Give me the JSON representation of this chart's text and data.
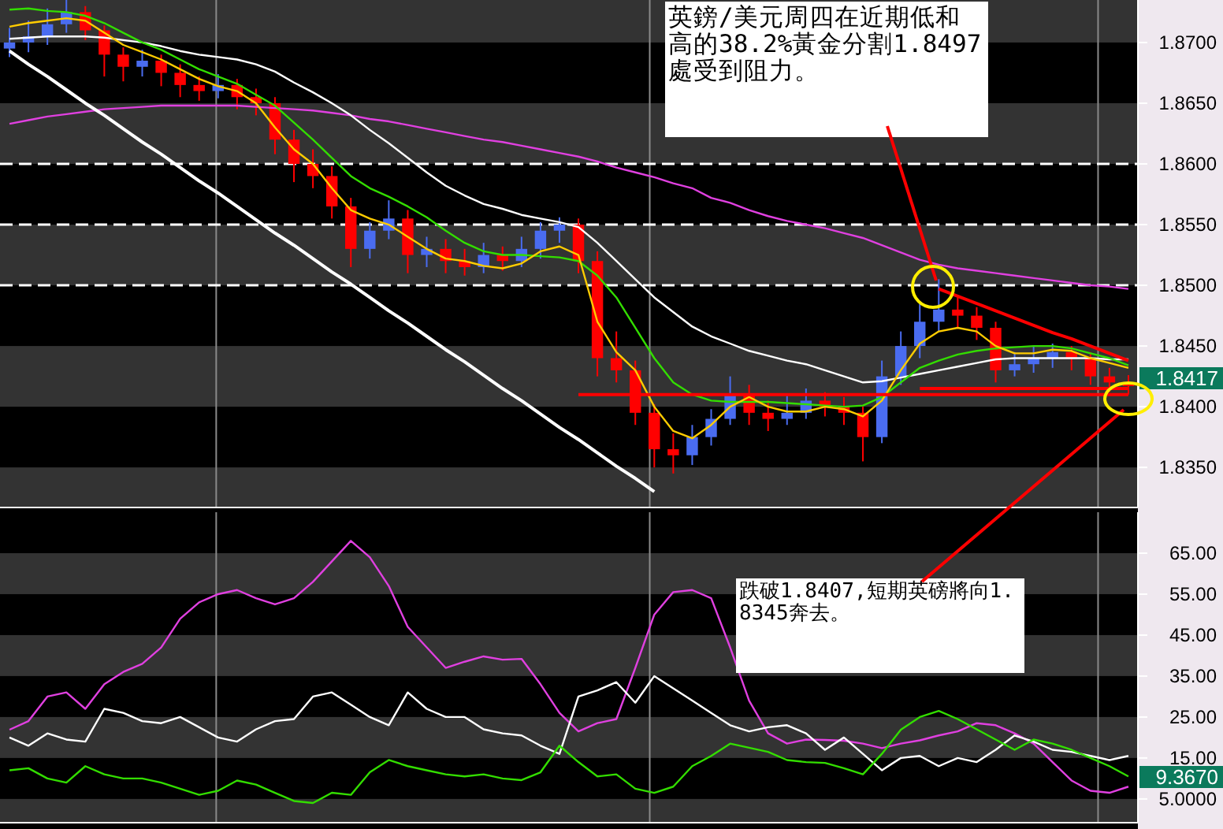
{
  "chart_data": [
    {
      "type": "candlestick",
      "categories": [
        null,
        null,
        null,
        null,
        null,
        null,
        null,
        null,
        null,
        null,
        null,
        null,
        null,
        null,
        null,
        null,
        null,
        null,
        null,
        null,
        null,
        null,
        null,
        null,
        null,
        null,
        null,
        null,
        null,
        null,
        null,
        null,
        null,
        null,
        null,
        null,
        null,
        null,
        null,
        null,
        null,
        null,
        null,
        null,
        null,
        null,
        null,
        null,
        null,
        null,
        null,
        null,
        null,
        null,
        null,
        null,
        null,
        null,
        null,
        null
      ],
      "ohlc": [
        [
          1.8695,
          1.8712,
          1.8688,
          1.87
        ],
        [
          1.87,
          1.8718,
          1.8692,
          1.8705
        ],
        [
          1.8705,
          1.8728,
          1.8698,
          1.8715
        ],
        [
          1.8715,
          1.8735,
          1.8708,
          1.8725
        ],
        [
          1.8725,
          1.873,
          1.8702,
          1.871
        ],
        [
          1.871,
          1.8714,
          1.8672,
          1.869
        ],
        [
          1.869,
          1.8696,
          1.8668,
          1.868
        ],
        [
          1.868,
          1.8694,
          1.8672,
          1.8685
        ],
        [
          1.8685,
          1.869,
          1.8664,
          1.8675
        ],
        [
          1.8675,
          1.8682,
          1.8655,
          1.8665
        ],
        [
          1.8665,
          1.8672,
          1.8652,
          1.866
        ],
        [
          1.866,
          1.8674,
          1.8654,
          1.8665
        ],
        [
          1.8665,
          1.867,
          1.8645,
          1.8655
        ],
        [
          1.8655,
          1.8662,
          1.864,
          1.865
        ],
        [
          1.865,
          1.8655,
          1.8608,
          1.862
        ],
        [
          1.862,
          1.8628,
          1.8585,
          1.86
        ],
        [
          1.86,
          1.8612,
          1.858,
          1.859
        ],
        [
          1.859,
          1.8598,
          1.8555,
          1.8565
        ],
        [
          1.8565,
          1.8572,
          1.8515,
          1.853
        ],
        [
          1.853,
          1.8552,
          1.8522,
          1.8545
        ],
        [
          1.8545,
          1.857,
          1.8538,
          1.8555
        ],
        [
          1.8555,
          1.8562,
          1.851,
          1.8525
        ],
        [
          1.8525,
          1.854,
          1.8515,
          1.853
        ],
        [
          1.853,
          1.8538,
          1.851,
          1.852
        ],
        [
          1.852,
          1.853,
          1.8508,
          1.8515
        ],
        [
          1.8515,
          1.8535,
          1.851,
          1.8525
        ],
        [
          1.8525,
          1.8532,
          1.8512,
          1.852
        ],
        [
          1.852,
          1.854,
          1.8515,
          1.853
        ],
        [
          1.853,
          1.8552,
          1.8522,
          1.8545
        ],
        [
          1.8545,
          1.8556,
          1.8535,
          1.855
        ],
        [
          1.855,
          1.8555,
          1.851,
          1.852
        ],
        [
          1.852,
          1.8528,
          1.8425,
          1.844
        ],
        [
          1.844,
          1.8462,
          1.842,
          1.843
        ],
        [
          1.843,
          1.8438,
          1.8385,
          1.8395
        ],
        [
          1.8395,
          1.8402,
          1.835,
          1.8365
        ],
        [
          1.8365,
          1.8378,
          1.8345,
          1.836
        ],
        [
          1.836,
          1.8385,
          1.8352,
          1.8375
        ],
        [
          1.8375,
          1.8398,
          1.8368,
          1.839
        ],
        [
          1.839,
          1.8425,
          1.8385,
          1.841
        ],
        [
          1.841,
          1.8418,
          1.8385,
          1.8395
        ],
        [
          1.8395,
          1.8405,
          1.838,
          1.839
        ],
        [
          1.839,
          1.841,
          1.8385,
          1.8395
        ],
        [
          1.8395,
          1.8415,
          1.839,
          1.8405
        ],
        [
          1.8405,
          1.8412,
          1.8392,
          1.84
        ],
        [
          1.84,
          1.8408,
          1.8385,
          1.8395
        ],
        [
          1.8395,
          1.84,
          1.8355,
          1.8375
        ],
        [
          1.8375,
          1.8438,
          1.837,
          1.8425
        ],
        [
          1.8425,
          1.8462,
          1.8418,
          1.845
        ],
        [
          1.845,
          1.8485,
          1.844,
          1.847
        ],
        [
          1.847,
          1.8505,
          1.8462,
          1.848
        ],
        [
          1.848,
          1.849,
          1.8465,
          1.8475
        ],
        [
          1.8475,
          1.8482,
          1.8455,
          1.8465
        ],
        [
          1.8465,
          1.847,
          1.842,
          1.843
        ],
        [
          1.843,
          1.8445,
          1.8425,
          1.8435
        ],
        [
          1.8435,
          1.845,
          1.8428,
          1.844
        ],
        [
          1.844,
          1.8452,
          1.8432,
          1.8445
        ],
        [
          1.8445,
          1.845,
          1.843,
          1.844
        ],
        [
          1.844,
          1.8445,
          1.8418,
          1.8425
        ],
        [
          1.8425,
          1.8432,
          1.8412,
          1.842
        ],
        [
          1.842,
          1.8426,
          1.841,
          1.8417
        ]
      ],
      "colors": [
        "#4a6cf0",
        "#4a6cf0",
        "#4a6cf0",
        "#4a6cf0",
        "#ff0000",
        "#ff0000",
        "#ff0000",
        "#4a6cf0",
        "#ff0000",
        "#ff0000",
        "#ff0000",
        "#4a6cf0",
        "#ff0000",
        "#ff0000",
        "#ff0000",
        "#ff0000",
        "#ff0000",
        "#ff0000",
        "#ff0000",
        "#4a6cf0",
        "#4a6cf0",
        "#ff0000",
        "#4a6cf0",
        "#ff0000",
        "#ff0000",
        "#4a6cf0",
        "#ff0000",
        "#4a6cf0",
        "#4a6cf0",
        "#4a6cf0",
        "#ff0000",
        "#ff0000",
        "#ff0000",
        "#ff0000",
        "#ff0000",
        "#ff0000",
        "#4a6cf0",
        "#4a6cf0",
        "#4a6cf0",
        "#ff0000",
        "#ff0000",
        "#4a6cf0",
        "#4a6cf0",
        "#ff0000",
        "#ff0000",
        "#ff0000",
        "#4a6cf0",
        "#4a6cf0",
        "#4a6cf0",
        "#4a6cf0",
        "#ff0000",
        "#ff0000",
        "#ff0000",
        "#4a6cf0",
        "#4a6cf0",
        "#4a6cf0",
        "#ff0000",
        "#ff0000",
        "#ff0000",
        "#ff0000"
      ],
      "series": [
        {
          "type": "line",
          "color": "#e040e0",
          "values": [
            1.8633,
            1.8636,
            1.8639,
            1.8641,
            1.8643,
            1.8645,
            1.8646,
            1.8647,
            1.8648,
            1.8648,
            1.8648,
            1.8648,
            1.8648,
            1.8647,
            1.8646,
            1.8645,
            1.8644,
            1.8642,
            1.864,
            1.8637,
            1.8635,
            1.8632,
            1.8629,
            1.8626,
            1.8623,
            1.862,
            1.8618,
            1.8615,
            1.8612,
            1.8609,
            1.8606,
            1.8602,
            1.8597,
            1.8593,
            1.8589,
            1.8584,
            1.858,
            1.8572,
            1.8568,
            1.8562,
            1.8557,
            1.8553,
            1.855,
            1.8547,
            1.8543,
            1.8539,
            1.8533,
            1.8527,
            1.8521,
            1.8517,
            1.8514,
            1.8512,
            1.851,
            1.8508,
            1.8506,
            1.8504,
            1.8502,
            1.85,
            1.8499,
            1.8497
          ]
        },
        {
          "type": "line",
          "color": "#ffffff",
          "values": [
            1.8703,
            1.8704,
            1.8705,
            1.8705,
            1.8705,
            1.8704,
            1.8702,
            1.87,
            1.8697,
            1.8693,
            1.869,
            1.8688,
            1.8686,
            1.8682,
            1.8676,
            1.8667,
            1.8659,
            1.865,
            1.864,
            1.8628,
            1.8617,
            1.8605,
            1.8593,
            1.8582,
            1.8574,
            1.8567,
            1.8563,
            1.8558,
            1.8555,
            1.8552,
            1.8548,
            1.8535,
            1.852,
            1.8505,
            1.849,
            1.8478,
            1.8466,
            1.8458,
            1.8452,
            1.8446,
            1.8442,
            1.8438,
            1.8435,
            1.843,
            1.8425,
            1.842,
            1.8421,
            1.8424,
            1.8427,
            1.843,
            1.8433,
            1.8436,
            1.8439,
            1.844,
            1.844,
            1.844,
            1.844,
            1.844,
            1.8439,
            1.8439
          ]
        },
        {
          "type": "line",
          "color": "#33dd00",
          "values": [
            1.8727,
            1.8728,
            1.8726,
            1.8725,
            1.8722,
            1.8716,
            1.8708,
            1.87,
            1.8694,
            1.8686,
            1.8678,
            1.8672,
            1.8666,
            1.8657,
            1.8648,
            1.8634,
            1.862,
            1.8605,
            1.859,
            1.858,
            1.8573,
            1.8565,
            1.8556,
            1.8545,
            1.8535,
            1.8528,
            1.8525,
            1.8525,
            1.8524,
            1.8523,
            1.852,
            1.8508,
            1.849,
            1.8465,
            1.844,
            1.842,
            1.841,
            1.8405,
            1.8404,
            1.8404,
            1.8404,
            1.8403,
            1.8402,
            1.8401,
            1.84,
            1.8401,
            1.8408,
            1.842,
            1.8432,
            1.8438,
            1.8443,
            1.8446,
            1.8448,
            1.8449,
            1.845,
            1.845,
            1.8448,
            1.8444,
            1.844,
            1.8434
          ]
        },
        {
          "type": "line",
          "color": "#ffcc00",
          "values": [
            1.8713,
            1.8716,
            1.8718,
            1.872,
            1.8718,
            1.8708,
            1.8698,
            1.8692,
            1.8686,
            1.8678,
            1.867,
            1.8664,
            1.866,
            1.865,
            1.863,
            1.8612,
            1.86,
            1.858,
            1.8562,
            1.8555,
            1.855,
            1.854,
            1.853,
            1.8522,
            1.852,
            1.8516,
            1.8514,
            1.8518,
            1.8528,
            1.8532,
            1.8525,
            1.847,
            1.8445,
            1.843,
            1.84,
            1.838,
            1.8374,
            1.8385,
            1.84,
            1.8408,
            1.84,
            1.8396,
            1.8396,
            1.84,
            1.8398,
            1.8392,
            1.8405,
            1.843,
            1.8452,
            1.8462,
            1.8465,
            1.8462,
            1.845,
            1.8444,
            1.8444,
            1.8447,
            1.8446,
            1.844,
            1.8436,
            1.8432
          ]
        },
        {
          "type": "line",
          "color": "#ffffff",
          "values": [
            1.8693,
            1.8682,
            1.8672,
            1.8661,
            1.865,
            1.864,
            1.8629,
            1.8618,
            1.8608,
            1.8597,
            1.8586,
            1.8576,
            1.8565,
            1.8554,
            1.8543,
            1.8533,
            1.8522,
            1.8511,
            1.8501,
            1.849,
            1.8479,
            1.8469,
            1.8458,
            1.8447,
            1.8437,
            1.8426,
            1.8415,
            1.8405,
            1.8394,
            1.8383,
            1.8373,
            1.8362,
            1.8351,
            1.8341,
            1.833,
            null,
            null,
            null,
            null,
            null,
            null,
            null,
            null,
            null,
            null,
            null,
            null,
            null,
            null,
            null,
            null,
            null,
            null,
            null,
            null,
            null,
            null,
            null,
            null,
            null
          ]
        },
        {
          "type": "line",
          "color": "#ff0000",
          "values": [
            null,
            null,
            null,
            null,
            null,
            null,
            null,
            null,
            null,
            null,
            null,
            null,
            null,
            null,
            null,
            null,
            null,
            null,
            null,
            null,
            null,
            null,
            null,
            null,
            null,
            null,
            null,
            null,
            null,
            null,
            1.841,
            1.841,
            1.841,
            1.841,
            1.841,
            1.841,
            1.841,
            1.841,
            1.841,
            1.841,
            1.841,
            1.841,
            1.841,
            1.841,
            1.841,
            1.841,
            1.841,
            1.841,
            1.841,
            1.841,
            1.841,
            1.841,
            1.841,
            1.841,
            1.841,
            1.841,
            1.841,
            1.841,
            1.841,
            1.841
          ]
        },
        {
          "type": "line",
          "color": "#ff0000",
          "values": [
            null,
            null,
            null,
            null,
            null,
            null,
            null,
            null,
            null,
            null,
            null,
            null,
            null,
            null,
            null,
            null,
            null,
            null,
            null,
            null,
            null,
            null,
            null,
            null,
            null,
            null,
            null,
            null,
            null,
            null,
            null,
            null,
            null,
            null,
            null,
            null,
            null,
            null,
            null,
            null,
            null,
            null,
            null,
            null,
            null,
            null,
            null,
            null,
            1.8415,
            1.8415,
            1.8415,
            1.8415,
            1.8415,
            1.8415,
            1.8415,
            1.8415,
            1.8415,
            1.8415,
            1.8415,
            1.8415
          ]
        },
        {
          "type": "line",
          "color": "#ff0000",
          "values": [
            null,
            null,
            null,
            null,
            null,
            null,
            null,
            null,
            null,
            null,
            null,
            null,
            null,
            null,
            null,
            null,
            null,
            null,
            null,
            null,
            null,
            null,
            null,
            null,
            null,
            null,
            null,
            null,
            null,
            null,
            null,
            null,
            null,
            null,
            null,
            null,
            null,
            null,
            null,
            null,
            null,
            null,
            null,
            null,
            null,
            null,
            null,
            null,
            null,
            1.8497,
            1.8491,
            1.8485,
            1.8479,
            1.8473,
            1.8467,
            1.8461,
            1.8456,
            1.845,
            1.8444,
            1.8438
          ]
        }
      ],
      "ylim": [
        1.8317,
        1.8735
      ],
      "yticks": [
        {
          "value": 1.835,
          "label": "1.8350"
        },
        {
          "value": 1.84,
          "label": "1.8400"
        },
        {
          "value": 1.845,
          "label": "1.8450"
        },
        {
          "value": 1.85,
          "label": "1.8500"
        },
        {
          "value": 1.855,
          "label": "1.8550"
        },
        {
          "value": 1.86,
          "label": "1.8600"
        },
        {
          "value": 1.865,
          "label": "1.8650"
        },
        {
          "value": 1.87,
          "label": "1.8700"
        }
      ],
      "bands": [
        {
          "axis": "y",
          "from": 1.8317,
          "to": 1.835,
          "color": "#333333"
        },
        {
          "axis": "y",
          "from": 1.84,
          "to": 1.845,
          "color": "#333333"
        },
        {
          "axis": "y",
          "from": 1.85,
          "to": 1.855,
          "color": "#333333"
        },
        {
          "axis": "y",
          "from": 1.86,
          "to": 1.865,
          "color": "#333333"
        },
        {
          "axis": "y",
          "from": 1.87,
          "to": 1.8735,
          "color": "#333333"
        }
      ],
      "ref_lines": [
        {
          "axis": "y",
          "value": 1.86,
          "color": "#ffffff",
          "line_style": "dashed"
        },
        {
          "axis": "y",
          "value": 1.855,
          "color": "#ffffff",
          "line_style": "dashed"
        },
        {
          "axis": "y",
          "value": 1.85,
          "color": "#ffffff",
          "line_style": "dashed"
        }
      ],
      "annotations": [
        "英鎊/美元周四在近期低和高的38.2%黃金分割1.8497處受到阻力。",
        "1.8417"
      ]
    },
    {
      "type": "line",
      "categories": [
        null,
        null,
        null,
        null,
        null,
        null,
        null,
        null,
        null,
        null,
        null,
        null,
        null,
        null,
        null,
        null,
        null,
        null,
        null,
        null,
        null,
        null,
        null,
        null,
        null,
        null,
        null,
        null,
        null,
        null,
        null,
        null,
        null,
        null,
        null,
        null,
        null,
        null,
        null,
        null,
        null,
        null,
        null,
        null,
        null,
        null,
        null,
        null,
        null,
        null,
        null,
        null,
        null,
        null,
        null,
        null,
        null,
        null,
        null,
        null
      ],
      "series": [
        {
          "color": "#e040e0",
          "values": [
            21.9,
            24,
            30,
            31,
            27,
            33,
            36,
            38,
            42,
            49,
            53,
            55,
            56,
            54,
            52.5,
            54,
            58,
            63,
            68,
            64,
            57,
            47,
            42,
            37,
            38.5,
            39.8,
            39,
            39.2,
            33,
            26,
            21.5,
            23.5,
            24.5,
            37,
            50,
            55.5,
            56,
            54,
            42,
            29,
            21,
            18.5,
            19.5,
            19.4,
            19.2,
            18.5,
            17.4,
            18.5,
            19.3,
            20.5,
            21.5,
            23.5,
            23,
            21,
            18.5,
            14,
            9.5,
            7,
            6.5,
            8
          ]
        },
        {
          "color": "#ffffff",
          "values": [
            20,
            18,
            21,
            19.5,
            19,
            27,
            26,
            24,
            23.5,
            25,
            22.5,
            20,
            19,
            22,
            24,
            24.5,
            30,
            31,
            28,
            25,
            23,
            31,
            27,
            25,
            25,
            22,
            21,
            20.5,
            18,
            16,
            30,
            31.5,
            33.5,
            28.5,
            35,
            32,
            29,
            26,
            23,
            21.5,
            22.5,
            23,
            21,
            17,
            20,
            16,
            12,
            15,
            15.5,
            13,
            15,
            14,
            17,
            20.5,
            19,
            17,
            16.5,
            15.5,
            14.5,
            15.5
          ]
        },
        {
          "color": "#33dd00",
          "values": [
            12,
            12.5,
            10,
            9,
            13,
            11,
            10,
            10,
            9,
            7.5,
            6,
            7,
            9.5,
            8.5,
            6.5,
            4.5,
            4,
            6.5,
            6,
            11.5,
            14.5,
            13,
            12,
            11,
            10.5,
            11,
            10,
            9.6,
            11.5,
            18,
            14,
            10.5,
            11,
            7.5,
            6.5,
            8,
            13,
            15.5,
            18.5,
            17.5,
            16.5,
            14.5,
            14,
            13.8,
            12.5,
            11,
            16,
            21.9,
            25,
            26.5,
            24.5,
            22,
            19.5,
            17,
            19.5,
            18.5,
            17,
            15,
            13,
            10.5
          ]
        }
      ],
      "ylim": [
        -0.8,
        75
      ],
      "yticks": [
        {
          "value": 5,
          "label": "5.0000"
        },
        {
          "value": 15,
          "label": "15.00"
        },
        {
          "value": 25,
          "label": "25.00"
        },
        {
          "value": 35,
          "label": "35.00"
        },
        {
          "value": 45,
          "label": "45.00"
        },
        {
          "value": 55,
          "label": "55.00"
        },
        {
          "value": 65,
          "label": "65.00"
        }
      ],
      "bands": [
        {
          "axis": "y",
          "from": -0.8,
          "to": 5,
          "color": "#333333"
        },
        {
          "axis": "y",
          "from": 15,
          "to": 25,
          "color": "#333333"
        },
        {
          "axis": "y",
          "from": 35,
          "to": 45,
          "color": "#333333"
        },
        {
          "axis": "y",
          "from": 55,
          "to": 65,
          "color": "#333333"
        }
      ],
      "annotations": [
        "跌破1.8407,短期英磅將向1.8345奔去。",
        "9.3670"
      ]
    }
  ]
}
